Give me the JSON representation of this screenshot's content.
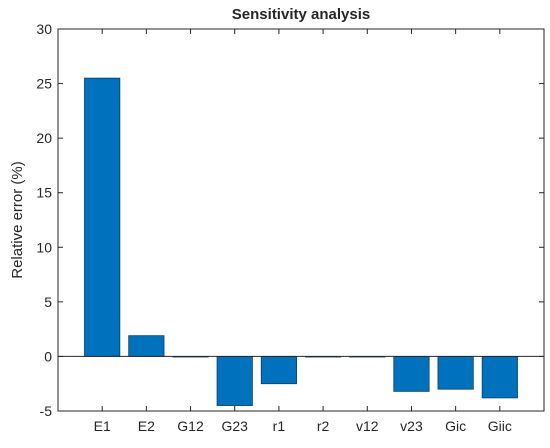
{
  "chart_data": {
    "type": "bar",
    "title": "Sensitivity analysis",
    "xlabel": "",
    "ylabel": "Relative error (%)",
    "categories": [
      "E1",
      "E2",
      "G12",
      "G23",
      "r1",
      "r2",
      "v12",
      "v23",
      "Gic",
      "Giic"
    ],
    "values": [
      25.5,
      1.9,
      0.0,
      -4.5,
      -2.5,
      0.0,
      0.0,
      -3.2,
      -3.0,
      -3.8
    ],
    "ylim": [
      -5,
      30
    ],
    "yticks": [
      -5,
      0,
      5,
      10,
      15,
      20,
      25,
      30
    ],
    "grid": false,
    "bar_color": "#0072BD",
    "bar_edge_color": "#0b3d63"
  }
}
